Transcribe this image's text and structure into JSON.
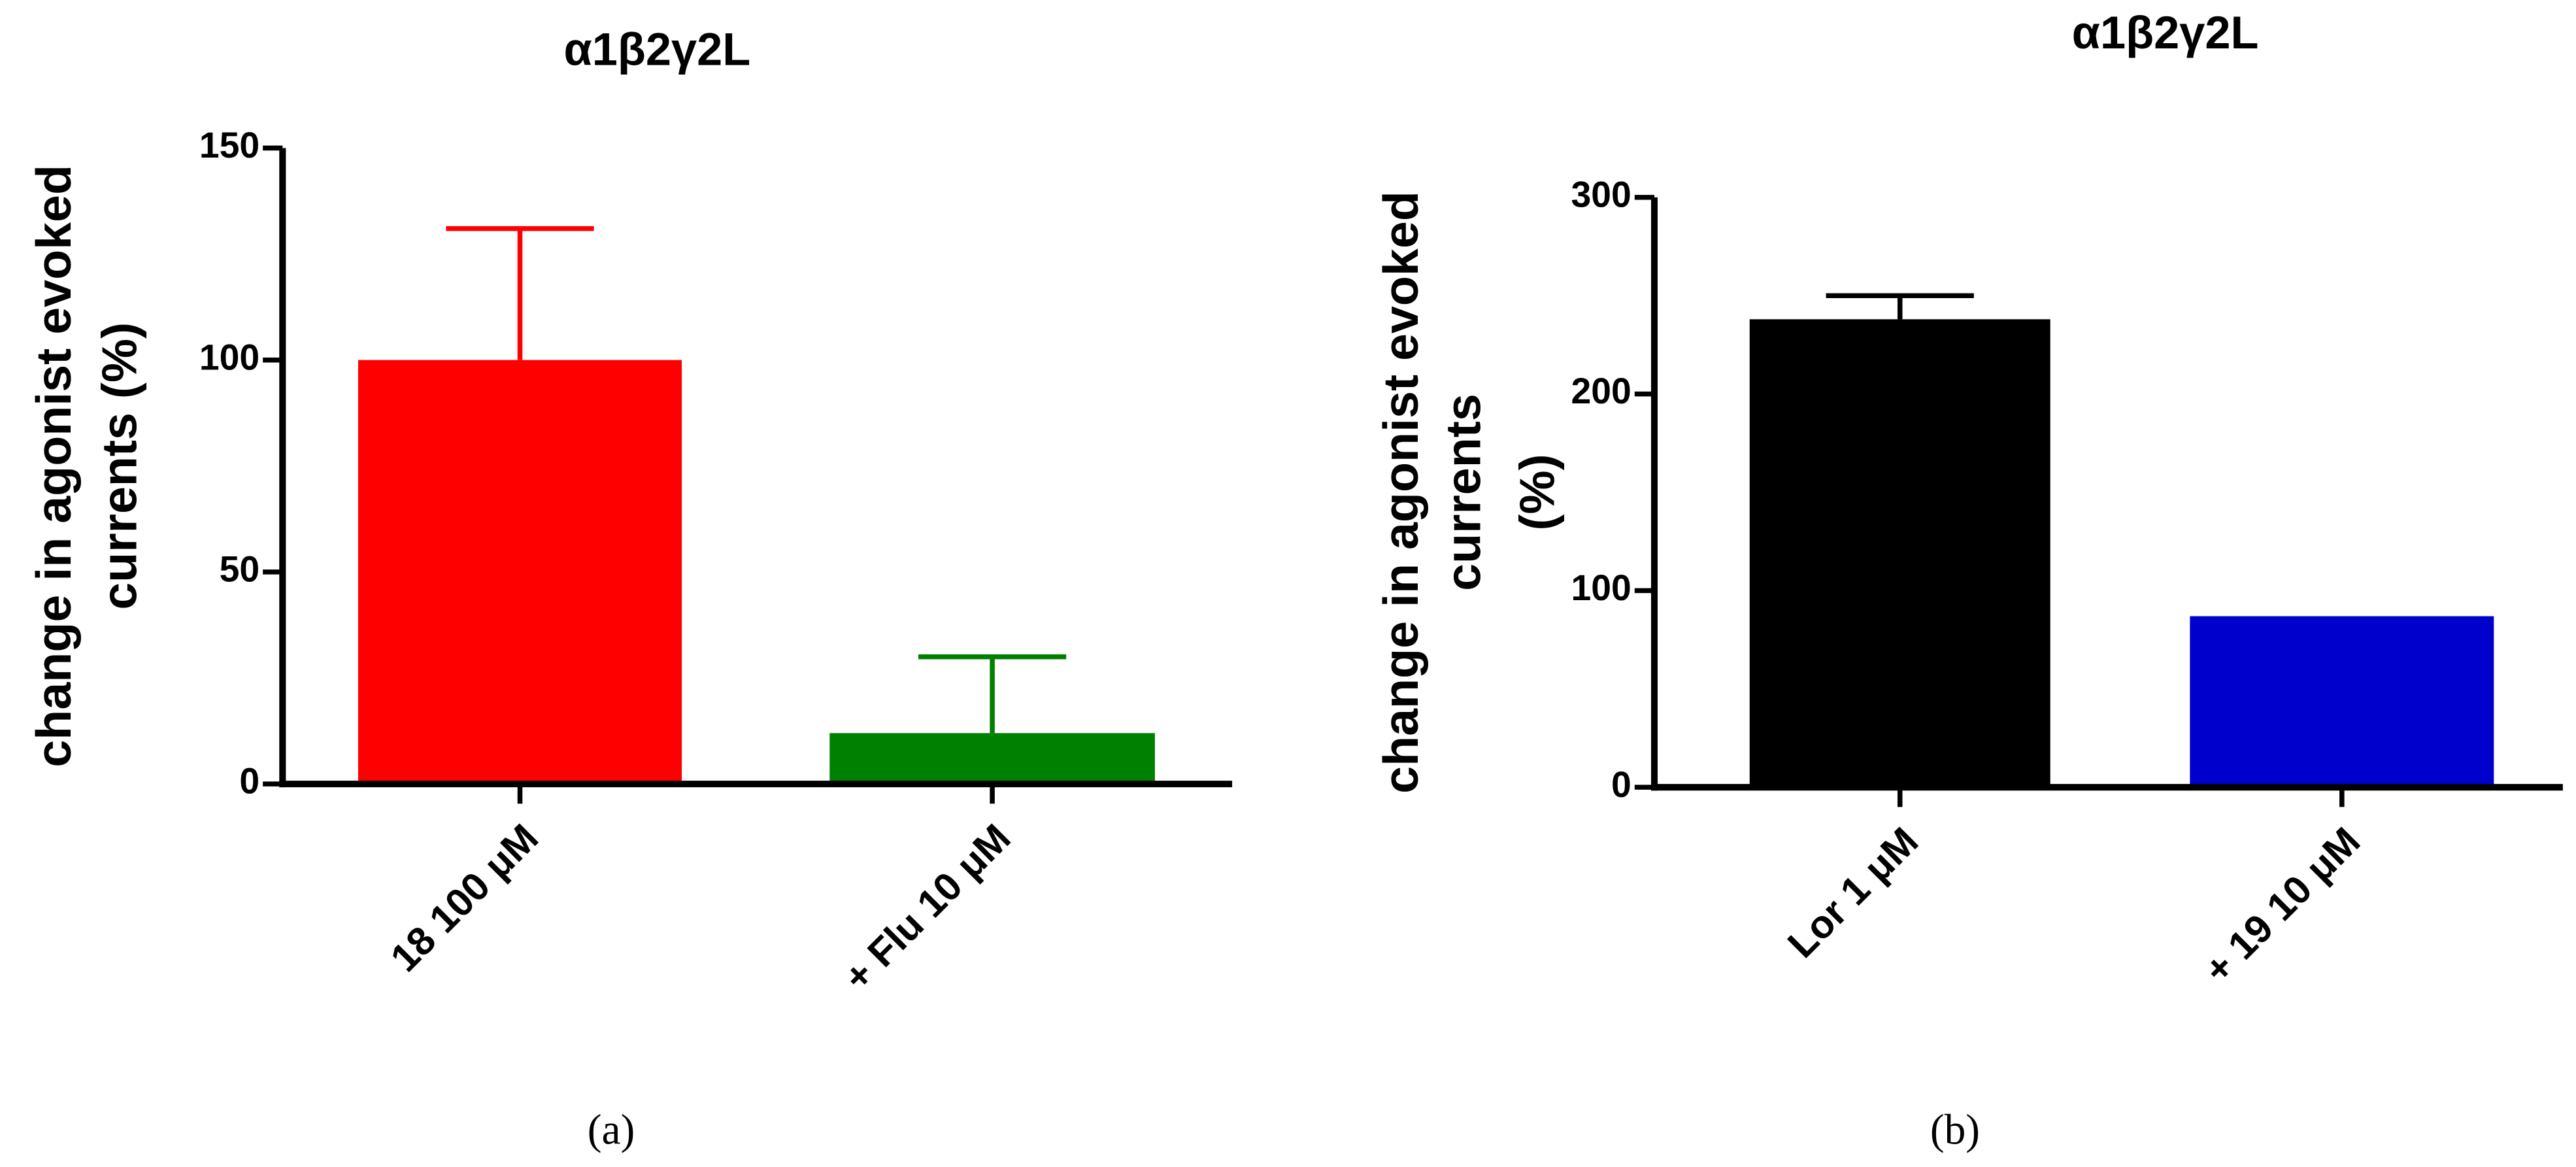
{
  "chart_data": [
    {
      "type": "bar",
      "title": "α1β2γ2L",
      "ylabel_lines": [
        "change in agonist evoked",
        "currents (%)"
      ],
      "categories": [
        "18   100 μM",
        "+ Flu 10 μM"
      ],
      "values": [
        100,
        12
      ],
      "errors": [
        31,
        18
      ],
      "colors": [
        "#ff0000",
        "#008000"
      ],
      "ylim": [
        0,
        150
      ],
      "yticks": [
        0,
        50,
        100,
        150
      ],
      "caption": "(a)"
    },
    {
      "type": "bar",
      "title": "α1β2γ2L",
      "ylabel_lines": [
        "change in agonist evoked",
        "currents",
        "(%)"
      ],
      "categories": [
        "Lor 1 μM",
        "+ 19    10 μM"
      ],
      "values": [
        238,
        87
      ],
      "errors": [
        12,
        null
      ],
      "colors": [
        "#000000",
        "#0000cc"
      ],
      "ylim": [
        0,
        300
      ],
      "yticks": [
        0,
        100,
        200,
        300
      ],
      "caption": "(b)"
    }
  ]
}
